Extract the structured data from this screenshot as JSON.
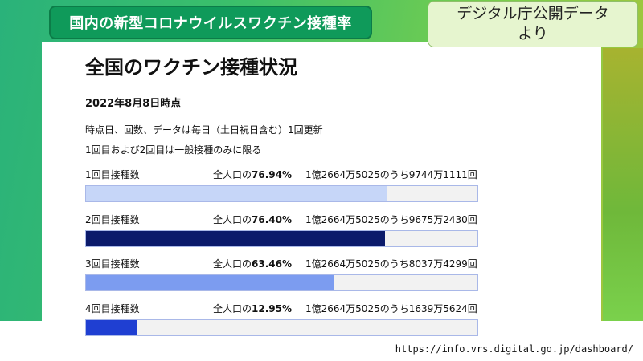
{
  "header": {
    "title": "国内の新型コロナウイルスワクチン接種率",
    "source_line1": "デジタル庁公開データ",
    "source_line2": "より"
  },
  "panel": {
    "heading": "全国のワクチン接種状況",
    "date": "2022年8月8日時点",
    "note1": "時点日、回数、データは毎日（土日祝日含む）1回更新",
    "note2": "1回目および2回目は一般接種のみに限る"
  },
  "rows": [
    {
      "label": "1回目接種数",
      "pct_prefix": "全人口の",
      "pct": "76.94%",
      "count": "1億2664万5025のうち9744万1111回",
      "fraction": 0.7694,
      "color": "#c6d6f8"
    },
    {
      "label": "2回目接種数",
      "pct_prefix": "全人口の",
      "pct": "76.40%",
      "count": "1億2664万5025のうち9675万2430回",
      "fraction": 0.764,
      "color": "#0b1a6b"
    },
    {
      "label": "3回目接種数",
      "pct_prefix": "全人口の",
      "pct": "63.46%",
      "count": "1億2664万5025のうち8037万4299回",
      "fraction": 0.6346,
      "color": "#7c9cf0"
    },
    {
      "label": "4回目接種数",
      "pct_prefix": "全人口の",
      "pct": "12.95%",
      "count": "1億2664万5025のうち1639万5624回",
      "fraction": 0.1295,
      "color": "#1f3fd2"
    }
  ],
  "footer": {
    "url": "https://info.vrs.digital.go.jp/dashboard/"
  }
}
